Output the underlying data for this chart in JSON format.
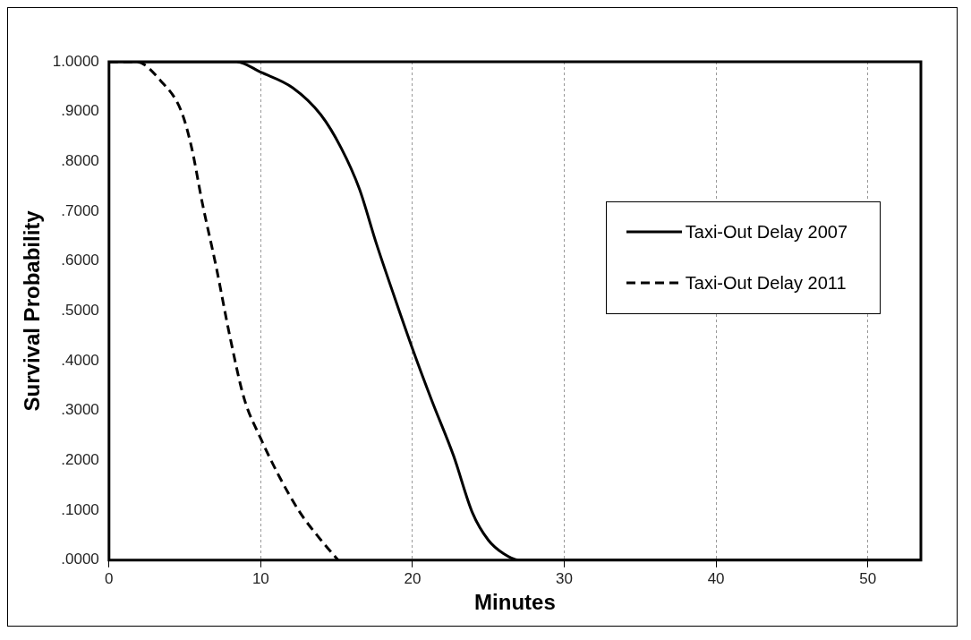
{
  "chart_data": {
    "type": "line",
    "xlabel": "Minutes",
    "ylabel": "Survival Probability",
    "xlim": [
      0,
      53.5
    ],
    "xticks": [
      0,
      10,
      20,
      30,
      40,
      50
    ],
    "ylim": [
      0,
      1
    ],
    "yticks": [
      {
        "value": 0,
        "label": ".0000"
      },
      {
        "value": 0.1,
        "label": ".1000"
      },
      {
        "value": 0.2,
        "label": ".2000"
      },
      {
        "value": 0.3,
        "label": ".3000"
      },
      {
        "value": 0.4,
        "label": ".4000"
      },
      {
        "value": 0.5,
        "label": ".5000"
      },
      {
        "value": 0.6,
        "label": ".6000"
      },
      {
        "value": 0.7,
        "label": ".7000"
      },
      {
        "value": 0.8,
        "label": ".8000"
      },
      {
        "value": 0.9,
        "label": ".9000"
      },
      {
        "value": 1,
        "label": "1.0000"
      }
    ],
    "grid": "x",
    "legend": "right",
    "marker": "none",
    "series": [
      {
        "name": "Taxi-Out Delay 2007",
        "color": "#000000",
        "line_style": "solid",
        "x": [
          0,
          8.4,
          10,
          12.1,
          13.95,
          15.3,
          16.5,
          17.6,
          18.8,
          20.05,
          21.3,
          22.7,
          23.95,
          25,
          26,
          27,
          53.5
        ],
        "values": [
          1,
          1,
          0.979,
          0.948,
          0.894,
          0.827,
          0.745,
          0.637,
          0.529,
          0.42,
          0.318,
          0.21,
          0.095,
          0.04,
          0.013,
          0,
          0
        ]
      },
      {
        "name": "Taxi-Out Delay 2011",
        "color": "#000000",
        "line_style": "dashed",
        "x": [
          0,
          1.8,
          3.4,
          4.76,
          5.45,
          6.14,
          7.06,
          7.98,
          8.9,
          10,
          11.2,
          12.6,
          13.95,
          15.1
        ],
        "values": [
          1,
          1,
          0.962,
          0.901,
          0.827,
          0.718,
          0.589,
          0.447,
          0.325,
          0.244,
          0.169,
          0.095,
          0.041,
          0
        ]
      }
    ]
  }
}
